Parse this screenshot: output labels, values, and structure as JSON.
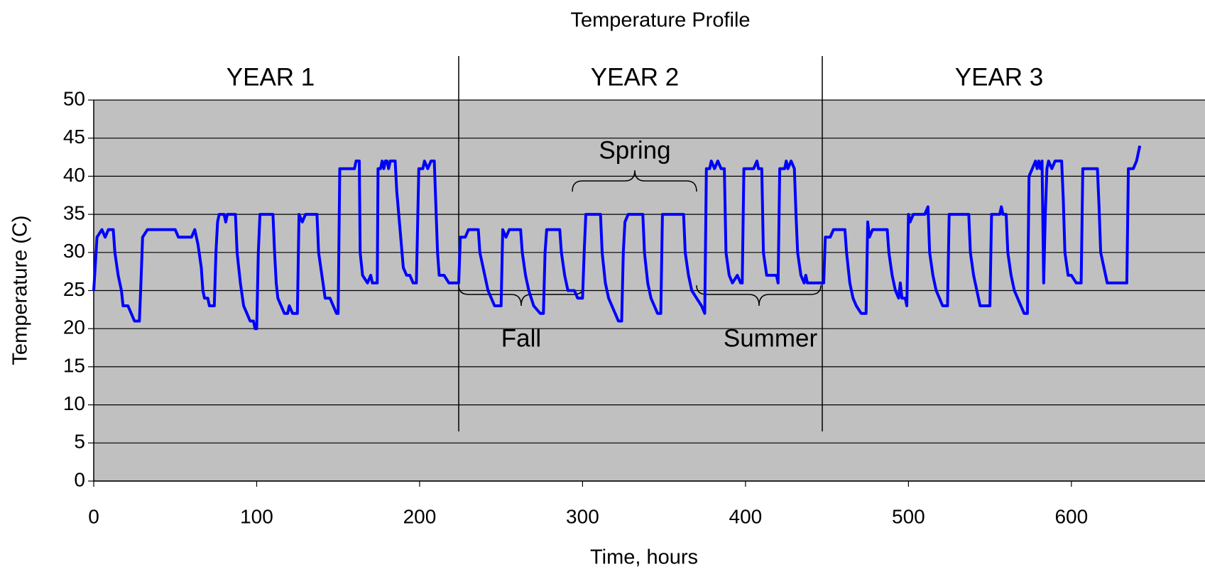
{
  "chart_data": {
    "type": "line",
    "title": "Temperature Profile",
    "x_label": "Time, hours",
    "y_label": "Temperature (C)",
    "annotations": [
      "YEAR 1",
      "YEAR 2",
      "YEAR 3",
      "Spring",
      "Fall",
      "Summer"
    ],
    "color": "#0000ff",
    "grid": true,
    "xlim": [
      0,
      682
    ],
    "ylim": [
      0,
      50
    ],
    "xticks": [
      0,
      100,
      200,
      300,
      400,
      500,
      600
    ],
    "yticks": [
      0,
      5,
      10,
      15,
      20,
      25,
      30,
      35,
      40,
      45,
      50
    ],
    "x": [
      0,
      2,
      5,
      7,
      9,
      12,
      13,
      15,
      17,
      18,
      21,
      23,
      25,
      28,
      29,
      30,
      33,
      40,
      50,
      52,
      60,
      62,
      63,
      64,
      66,
      67,
      68,
      70,
      71,
      74,
      75,
      76,
      77,
      80,
      81,
      82,
      87,
      88,
      90,
      92,
      94,
      96,
      98,
      99,
      100,
      101,
      102,
      110,
      111,
      112,
      113,
      115,
      117,
      119,
      120,
      122,
      125,
      126,
      128,
      130,
      137,
      138,
      140,
      142,
      145,
      147,
      149,
      150,
      151,
      154,
      160,
      161,
      163,
      163.5,
      165,
      168,
      170,
      171,
      174,
      174.5,
      176,
      177,
      178,
      179,
      180,
      181,
      182,
      185,
      186,
      188,
      190,
      192,
      194,
      196,
      198,
      199.5,
      202,
      203,
      205,
      207,
      209,
      210,
      211,
      212,
      215,
      218,
      221,
      224,
      225,
      228,
      230,
      236,
      237,
      240,
      242,
      244,
      246,
      250,
      251,
      253,
      255,
      262,
      263,
      265,
      267,
      270,
      274,
      276,
      277,
      278,
      286,
      287,
      289,
      291,
      295,
      297,
      300,
      301,
      302,
      311,
      312,
      314,
      316,
      318,
      320,
      322,
      324,
      325,
      326,
      328,
      337,
      338,
      340,
      342,
      344,
      346,
      348,
      349,
      362,
      363,
      365,
      367,
      370,
      373,
      375,
      376,
      378,
      379,
      381,
      383,
      385,
      387,
      388,
      390,
      392,
      395,
      397,
      398,
      399,
      405,
      407,
      408,
      410,
      411,
      413,
      419,
      420,
      421,
      424,
      425,
      426,
      428,
      430,
      431,
      432,
      434,
      436,
      437,
      438,
      445,
      448,
      449,
      452,
      454,
      461,
      462,
      464,
      466,
      468,
      471,
      474,
      475,
      476,
      478,
      487,
      488,
      490,
      492,
      494,
      495,
      496,
      498,
      499,
      500,
      501,
      503,
      510,
      512,
      513,
      515,
      517,
      519,
      521,
      524,
      525,
      537,
      538,
      540,
      542,
      544,
      550,
      551,
      556,
      557,
      558,
      560,
      561,
      563,
      565,
      567,
      569,
      571,
      573,
      574,
      576,
      578,
      579,
      580,
      581,
      582,
      583,
      584,
      585,
      586,
      588,
      590,
      594,
      595,
      596,
      598,
      600,
      603,
      606,
      607,
      616,
      617,
      618,
      620,
      622,
      634,
      635,
      638,
      640,
      641,
      642
    ],
    "values": [
      25,
      32,
      33,
      32,
      33,
      33,
      30,
      27,
      25,
      23,
      23,
      22,
      21,
      21,
      26,
      32,
      33,
      33,
      33,
      32,
      32,
      33,
      32,
      31,
      28,
      25,
      24,
      24,
      23,
      23,
      30,
      34,
      35,
      35,
      34,
      35,
      35,
      30,
      26,
      23,
      22,
      21,
      21,
      20,
      20,
      30,
      35,
      35,
      30,
      26,
      24,
      23,
      22,
      22,
      23,
      22,
      22,
      35,
      34,
      35,
      35,
      30,
      27,
      24,
      24,
      23,
      22,
      22,
      41,
      41,
      41,
      42,
      42,
      30,
      27,
      26,
      27,
      26,
      26,
      41,
      41,
      42,
      41,
      42,
      42,
      41,
      42,
      42,
      38,
      33,
      28,
      27,
      27,
      26,
      26,
      41,
      41,
      42,
      41,
      42,
      42,
      36,
      30,
      27,
      27,
      26,
      26,
      26,
      32,
      32,
      33,
      33,
      30,
      27,
      25,
      24,
      23,
      23,
      33,
      32,
      33,
      33,
      30,
      27,
      25,
      23,
      22,
      22,
      30,
      33,
      33,
      30,
      27,
      25,
      25,
      24,
      24,
      30,
      35,
      35,
      30,
      26,
      24,
      23,
      22,
      21,
      21,
      30,
      34,
      35,
      35,
      30,
      26,
      24,
      23,
      22,
      22,
      35,
      35,
      30,
      27,
      25,
      24,
      23,
      22,
      41,
      41,
      42,
      41,
      42,
      41,
      41,
      30,
      27,
      26,
      27,
      26,
      26,
      41,
      41,
      42,
      41,
      41,
      30,
      27,
      27,
      26,
      41,
      41,
      42,
      41,
      42,
      41,
      35,
      30,
      27,
      26,
      27,
      26,
      26,
      26,
      32,
      32,
      33,
      33,
      30,
      26,
      24,
      23,
      22,
      22,
      34,
      32,
      33,
      33,
      30,
      27,
      25,
      24,
      26,
      24,
      24,
      23,
      35,
      34,
      35,
      35,
      36,
      30,
      27,
      25,
      24,
      23,
      23,
      35,
      35,
      30,
      27,
      25,
      23,
      23,
      35,
      35,
      36,
      35,
      35,
      30,
      27,
      25,
      24,
      23,
      22,
      22,
      40,
      41,
      42,
      41,
      42,
      41,
      42,
      26,
      35,
      41,
      42,
      41,
      42,
      42,
      37,
      30,
      27,
      27,
      26,
      26,
      41,
      41,
      36,
      30,
      28,
      26,
      26,
      41,
      41,
      42,
      43,
      44
    ]
  }
}
